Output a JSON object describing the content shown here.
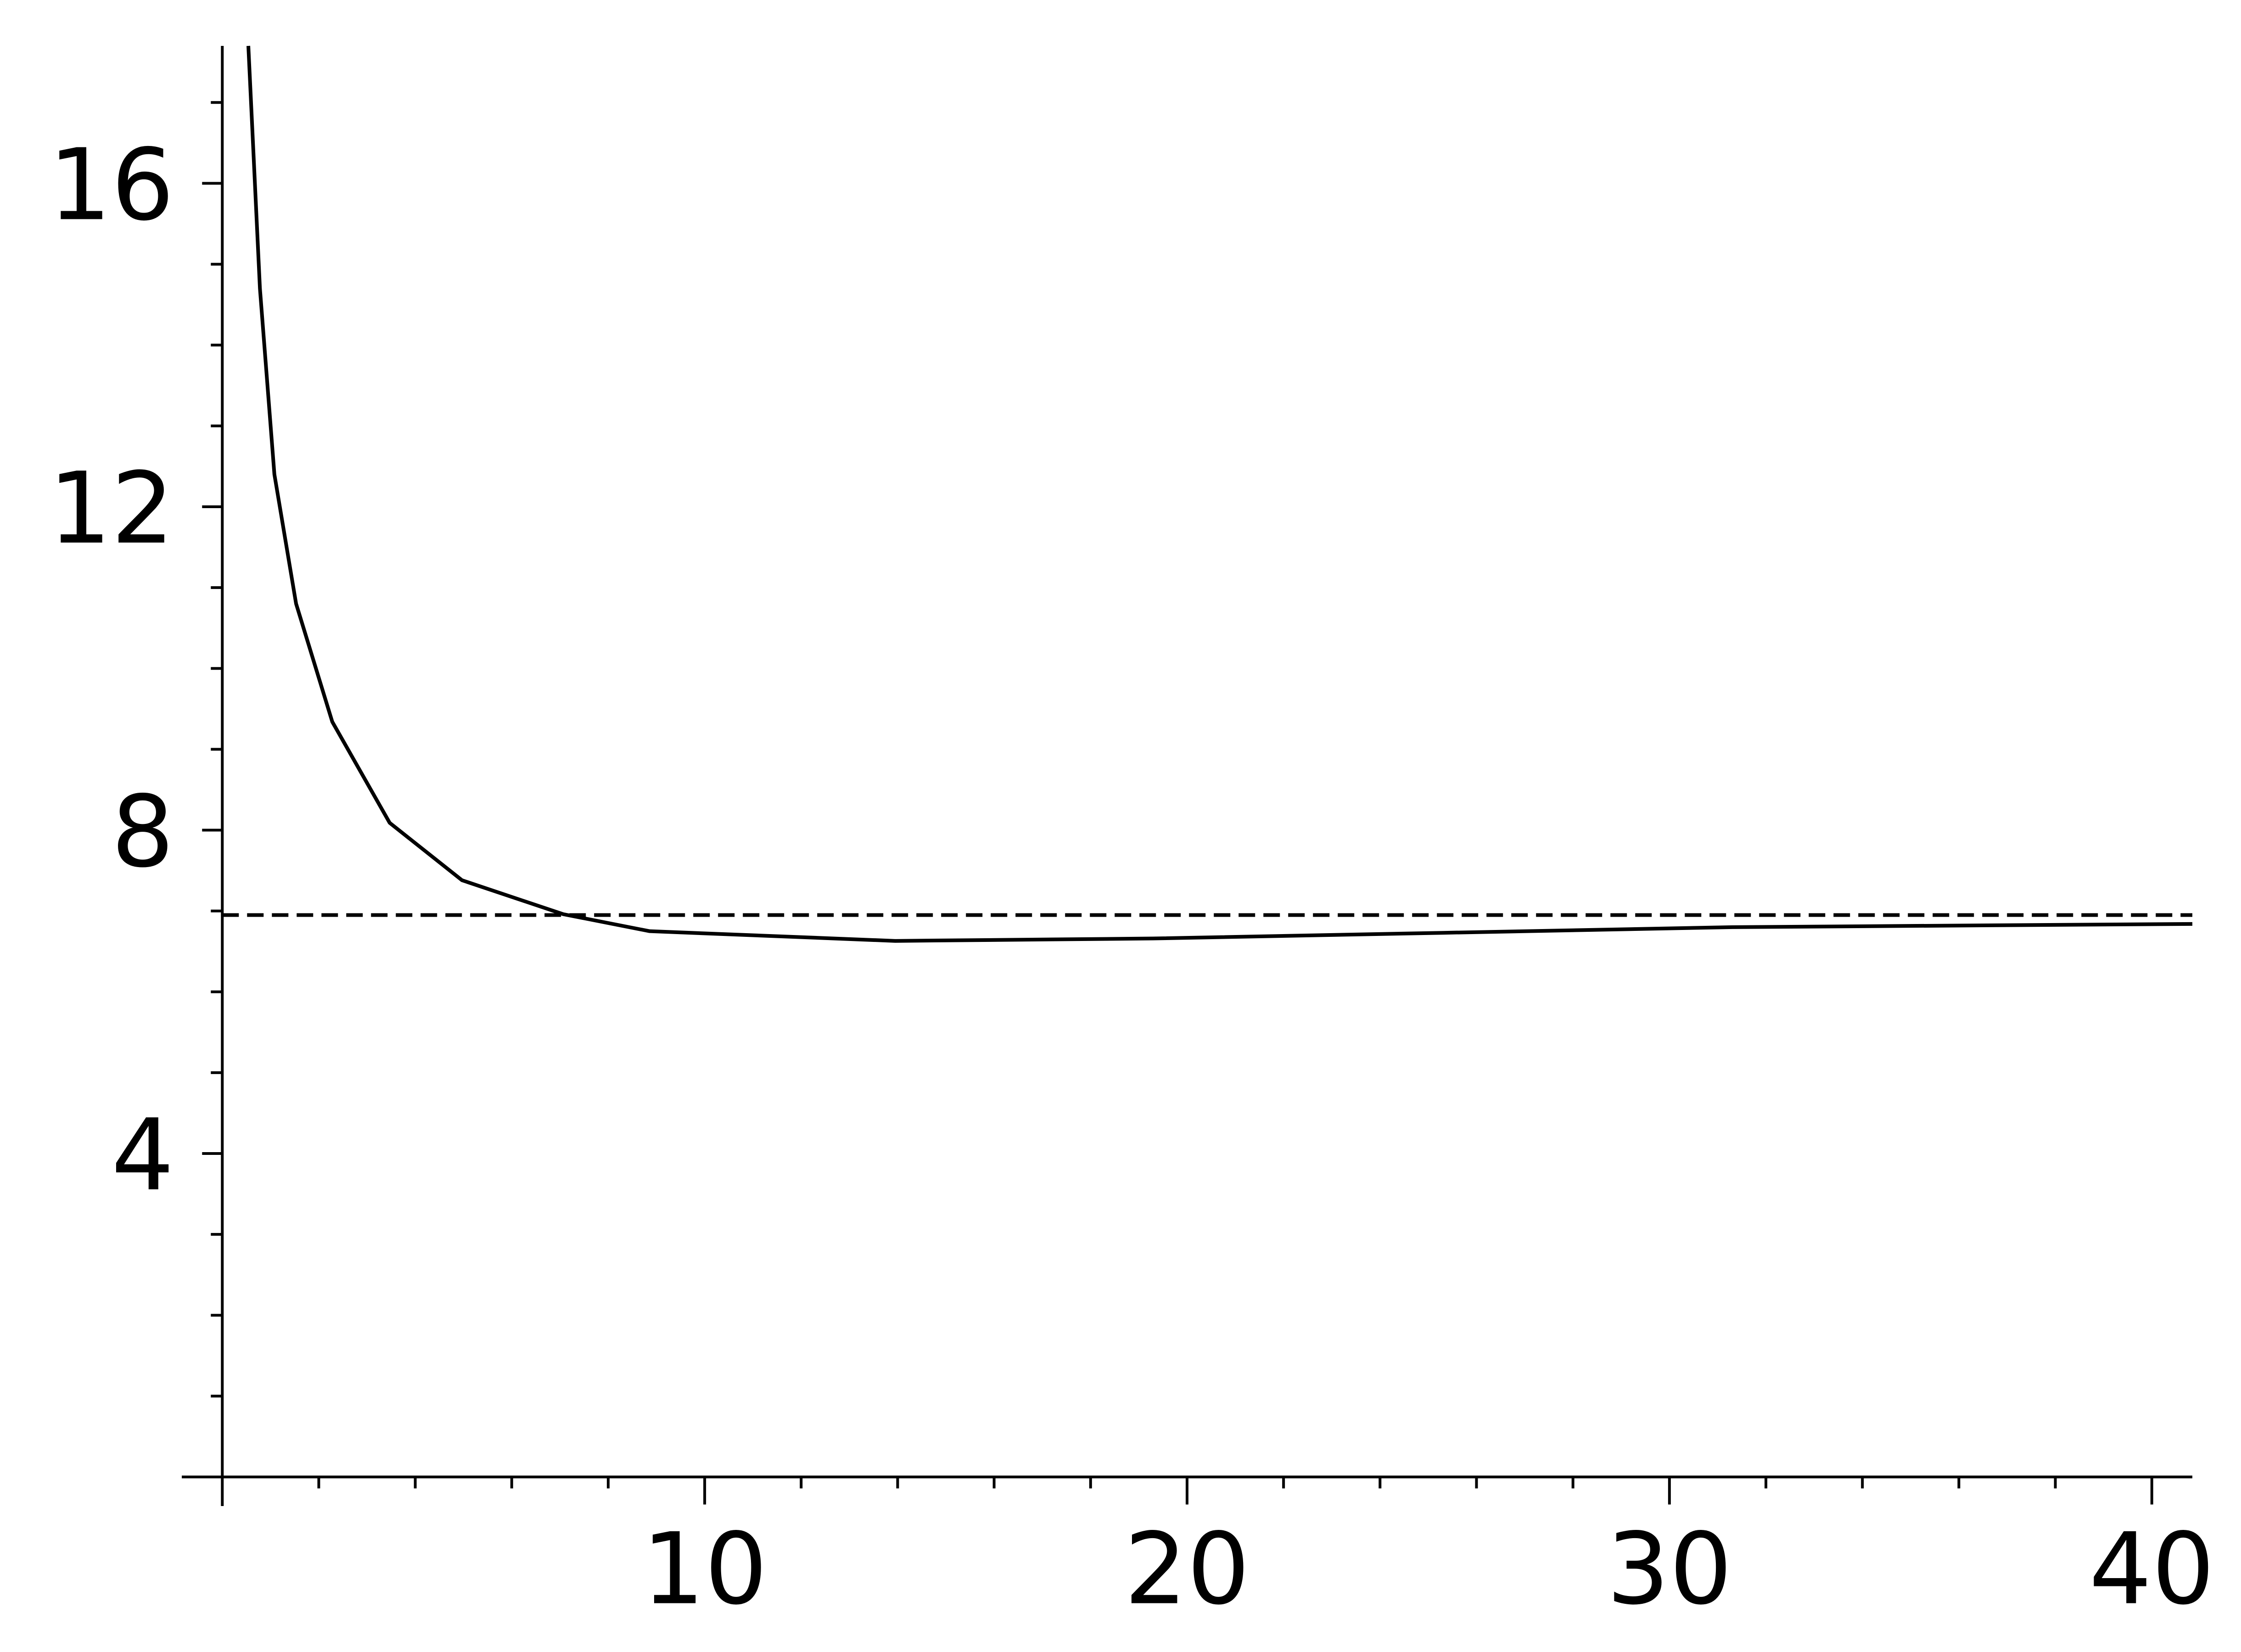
{
  "chart_data": {
    "type": "line",
    "series": [
      {
        "color": "#000000",
        "linestyle": "solid",
        "x": [
          0.54,
          0.78,
          1.08,
          1.53,
          2.28,
          3.47,
          4.97,
          7.07,
          8.86,
          13.95,
          19.3,
          25.3,
          31.3,
          40.84
        ],
        "values": [
          17.7,
          14.7,
          12.4,
          10.8,
          9.34,
          8.09,
          7.38,
          6.96,
          6.75,
          6.63,
          6.66,
          6.73,
          6.8,
          6.84
        ]
      },
      {
        "color": "#000000",
        "linestyle": "dashed",
        "x": [
          0,
          40.84
        ],
        "values": [
          6.95,
          6.95
        ]
      }
    ],
    "xlim": [
      -0.84,
      40.84
    ],
    "ylim": [
      -0.36,
      17.7
    ],
    "xticks": [
      10,
      20,
      30,
      40
    ],
    "yticks": [
      4,
      8,
      12,
      16
    ],
    "xminorticks": [
      2,
      4,
      6,
      8,
      12,
      14,
      16,
      18,
      22,
      24,
      26,
      28,
      32,
      34,
      36,
      38
    ],
    "yminorticks": [
      1,
      2,
      3,
      5,
      6,
      7,
      9,
      10,
      11,
      13,
      14,
      15,
      17
    ],
    "grid": false
  }
}
